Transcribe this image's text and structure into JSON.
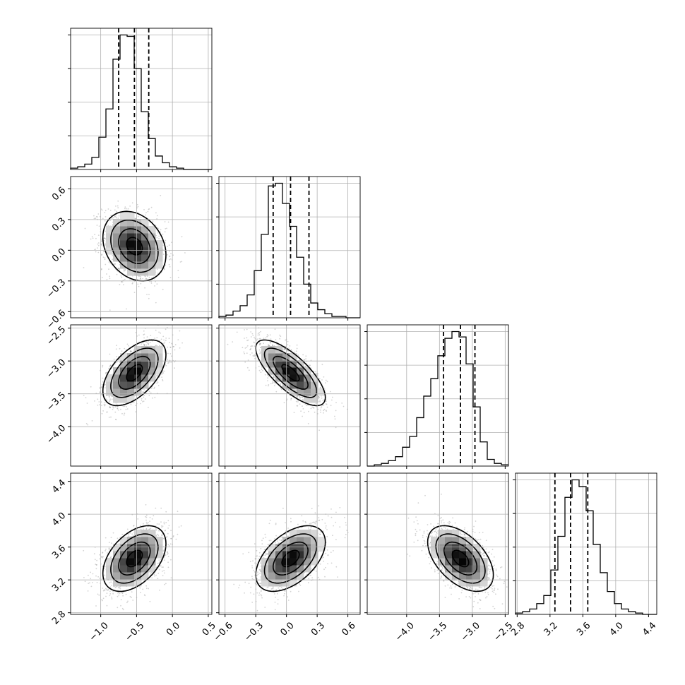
{
  "chart_data": {
    "type": "corner",
    "colors": {
      "line": "#000000",
      "grid": "#b0b0b0",
      "scatter": "#808080",
      "density_max": "#000000"
    },
    "grid": true,
    "parameters": [
      {
        "range": [
          -1.42,
          0.55
        ],
        "ticks": [
          -1.0,
          -0.5,
          0.0,
          0.5
        ],
        "tick_labels": [
          "−1.0",
          "−0.5",
          "0.0",
          "0.5"
        ],
        "mean": -0.53,
        "sd": 0.22,
        "quantiles": [
          -0.75,
          -0.53,
          -0.33
        ],
        "histogram": {
          "bin_start": -1.42,
          "bin_width": 0.0985,
          "counts": [
            1,
            2,
            4,
            9,
            24,
            45,
            82,
            100,
            99,
            75,
            43,
            23,
            10,
            5,
            2,
            1,
            0,
            0,
            0,
            0
          ]
        }
      },
      {
        "range": [
          -0.66,
          0.72
        ],
        "ticks": [
          -0.6,
          -0.3,
          0.0,
          0.3,
          0.6
        ],
        "tick_labels": [
          "−0.6",
          "−0.3",
          "0.0",
          "0.3",
          "0.6"
        ],
        "mean": 0.04,
        "sd": 0.17,
        "quantiles": [
          -0.13,
          0.04,
          0.22
        ],
        "histogram": {
          "bin_start": -0.66,
          "bin_width": 0.069,
          "counts": [
            1,
            2,
            5,
            9,
            17,
            35,
            62,
            98,
            100,
            85,
            68,
            45,
            25,
            11,
            6,
            3,
            1,
            1,
            0,
            0
          ]
        }
      },
      {
        "range": [
          -4.6,
          -2.45
        ],
        "ticks": [
          -4.0,
          -3.5,
          -3.0,
          -2.5
        ],
        "tick_labels": [
          "−4.0",
          "−3.5",
          "−3.0",
          "−2.5"
        ],
        "mean": -3.18,
        "sd": 0.25,
        "quantiles": [
          -3.44,
          -3.18,
          -2.96
        ],
        "histogram": {
          "bin_start": -4.6,
          "bin_width": 0.1075,
          "counts": [
            0,
            1,
            2,
            4,
            7,
            14,
            22,
            36,
            52,
            65,
            82,
            95,
            100,
            96,
            76,
            44,
            18,
            5,
            2,
            1
          ]
        }
      },
      {
        "range": [
          2.78,
          4.5
        ],
        "ticks": [
          2.8,
          3.2,
          3.6,
          4.0,
          4.4
        ],
        "tick_labels": [
          "2.8",
          "3.2",
          "3.6",
          "4.0",
          "4.4"
        ],
        "mean": 3.46,
        "sd": 0.2,
        "quantiles": [
          3.26,
          3.45,
          3.66
        ],
        "histogram": {
          "bin_start": 2.78,
          "bin_width": 0.086,
          "counts": [
            1,
            2,
            4,
            8,
            14,
            33,
            58,
            87,
            100,
            95,
            77,
            52,
            31,
            17,
            8,
            4,
            2,
            1,
            0,
            0
          ]
        }
      }
    ],
    "correlations": [
      {
        "row": 1,
        "col": 0,
        "r": -0.25
      },
      {
        "row": 2,
        "col": 0,
        "r": 0.55
      },
      {
        "row": 2,
        "col": 1,
        "r": -0.75
      },
      {
        "row": 3,
        "col": 0,
        "r": 0.45
      },
      {
        "row": 3,
        "col": 1,
        "r": 0.5
      },
      {
        "row": 3,
        "col": 2,
        "r": -0.5
      }
    ]
  }
}
